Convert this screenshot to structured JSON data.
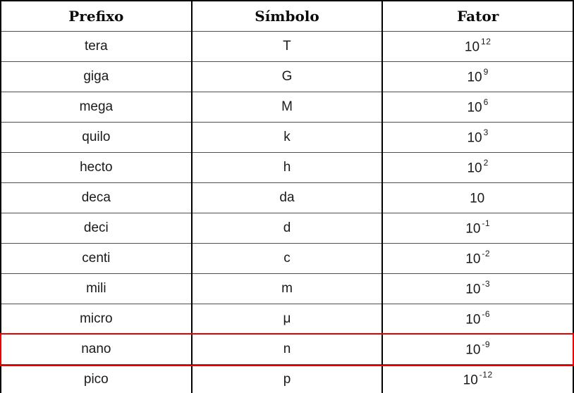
{
  "table": {
    "headers": {
      "prefixo": "Prefixo",
      "simbolo": "Símbolo",
      "fator": "Fator"
    },
    "rows": [
      {
        "prefixo": "tera",
        "simbolo": "T",
        "fator_base": "10",
        "fator_exp": "12",
        "highlighted": false
      },
      {
        "prefixo": "giga",
        "simbolo": "G",
        "fator_base": "10",
        "fator_exp": "9",
        "highlighted": false
      },
      {
        "prefixo": "mega",
        "simbolo": "M",
        "fator_base": "10",
        "fator_exp": "6",
        "highlighted": false
      },
      {
        "prefixo": "quilo",
        "simbolo": "k",
        "fator_base": "10",
        "fator_exp": "3",
        "highlighted": false
      },
      {
        "prefixo": "hecto",
        "simbolo": "h",
        "fator_base": "10",
        "fator_exp": "2",
        "highlighted": false
      },
      {
        "prefixo": "deca",
        "simbolo": "da",
        "fator_base": "10",
        "fator_exp": "",
        "highlighted": false
      },
      {
        "prefixo": "deci",
        "simbolo": "d",
        "fator_base": "10",
        "fator_exp": "-1",
        "highlighted": false
      },
      {
        "prefixo": "centi",
        "simbolo": "c",
        "fator_base": "10",
        "fator_exp": "-2",
        "highlighted": false
      },
      {
        "prefixo": "mili",
        "simbolo": "m",
        "fator_base": "10",
        "fator_exp": "-3",
        "highlighted": false
      },
      {
        "prefixo": "micro",
        "simbolo": "μ",
        "fator_base": "10",
        "fator_exp": "-6",
        "highlighted": false
      },
      {
        "prefixo": "nano",
        "simbolo": "n",
        "fator_base": "10",
        "fator_exp": "-9",
        "highlighted": true
      },
      {
        "prefixo": "pico",
        "simbolo": "p",
        "fator_base": "10",
        "fator_exp": "-12",
        "highlighted": false
      }
    ]
  },
  "colors": {
    "highlight_border": "#e60000",
    "outer_border": "#000000",
    "row_separator": "#4f4f4f"
  }
}
